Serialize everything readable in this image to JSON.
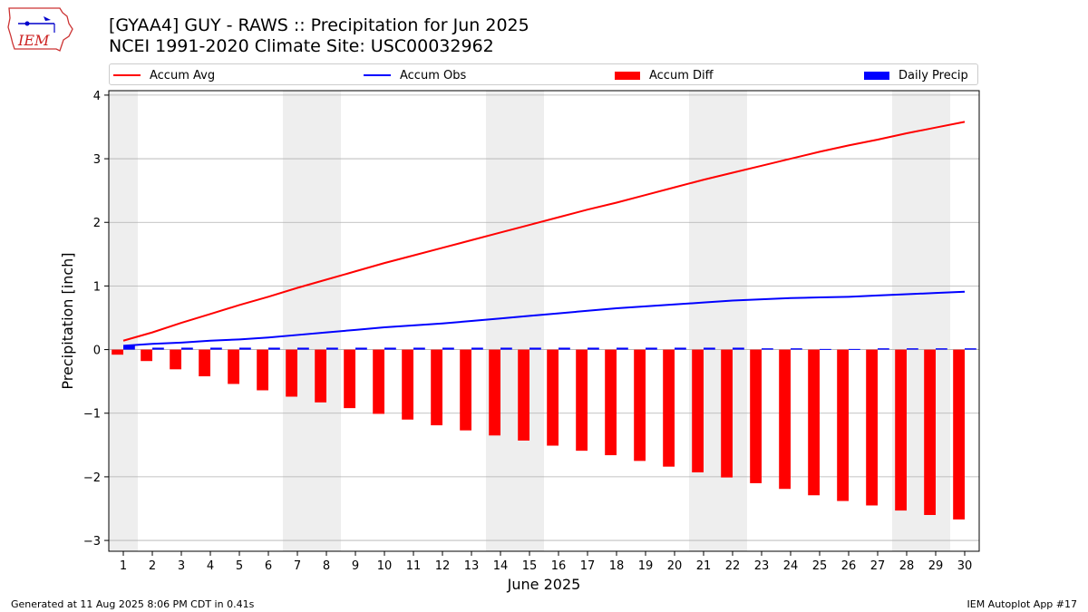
{
  "header": {
    "title_line1": "[GYAA4] GUY - RAWS :: Precipitation for Jun 2025",
    "title_line2": "NCEI 1991-2020 Climate Site: USC00032962",
    "logo_text": "IEM"
  },
  "footer": {
    "generated": "Generated at 11 Aug 2025 8:06 PM CDT in 0.41s",
    "app": "IEM Autoplot App #17"
  },
  "legend": {
    "accum_avg": "Accum Avg",
    "accum_obs": "Accum Obs",
    "accum_diff": "Accum Diff",
    "daily_precip": "Daily Precip"
  },
  "colors": {
    "accum_avg": "#ff0000",
    "accum_obs": "#0000ff",
    "accum_diff": "#ff0000",
    "daily_precip": "#0000ff",
    "weekend_shade": "#eeeeee",
    "grid": "#b0b0b0"
  },
  "chart_data": {
    "type": "bar",
    "xlabel": "June 2025",
    "ylabel": "Precipitation [inch]",
    "ylim": [
      -3.17,
      4.07
    ],
    "yticks": [
      -3,
      -2,
      -1,
      0,
      1,
      2,
      3,
      4
    ],
    "ytick_labels": [
      "−3",
      "−2",
      "−1",
      "0",
      "1",
      "2",
      "3",
      "4"
    ],
    "grid": "horizontal",
    "legend_position": "top",
    "x": [
      1,
      2,
      3,
      4,
      5,
      6,
      7,
      8,
      9,
      10,
      11,
      12,
      13,
      14,
      15,
      16,
      17,
      18,
      19,
      20,
      21,
      22,
      23,
      24,
      25,
      26,
      27,
      28,
      29,
      30
    ],
    "weekend_spans": [
      [
        0.5,
        1.5
      ],
      [
        6.5,
        8.5
      ],
      [
        13.5,
        15.5
      ],
      [
        20.5,
        22.5
      ],
      [
        27.5,
        29.5
      ]
    ],
    "series": [
      {
        "name": "Accum Avg",
        "kind": "line",
        "values": [
          0.14,
          0.27,
          0.42,
          0.56,
          0.7,
          0.83,
          0.97,
          1.1,
          1.23,
          1.36,
          1.48,
          1.6,
          1.72,
          1.84,
          1.96,
          2.08,
          2.2,
          2.31,
          2.43,
          2.55,
          2.67,
          2.78,
          2.89,
          3.0,
          3.11,
          3.21,
          3.3,
          3.4,
          3.49,
          3.58
        ]
      },
      {
        "name": "Accum Obs",
        "kind": "line",
        "values": [
          0.06,
          0.09,
          0.11,
          0.14,
          0.16,
          0.19,
          0.23,
          0.27,
          0.31,
          0.35,
          0.38,
          0.41,
          0.45,
          0.49,
          0.53,
          0.57,
          0.61,
          0.65,
          0.68,
          0.71,
          0.74,
          0.77,
          0.79,
          0.81,
          0.82,
          0.83,
          0.85,
          0.87,
          0.89,
          0.91
        ]
      },
      {
        "name": "Accum Diff",
        "kind": "bar",
        "values": [
          -0.08,
          -0.18,
          -0.31,
          -0.42,
          -0.54,
          -0.64,
          -0.74,
          -0.83,
          -0.92,
          -1.01,
          -1.1,
          -1.19,
          -1.27,
          -1.35,
          -1.43,
          -1.51,
          -1.59,
          -1.66,
          -1.75,
          -1.84,
          -1.93,
          -2.01,
          -2.1,
          -2.19,
          -2.29,
          -2.38,
          -2.45,
          -2.53,
          -2.6,
          -2.67
        ]
      },
      {
        "name": "Daily Precip",
        "kind": "bar",
        "values": [
          0.06,
          0.03,
          0.03,
          0.03,
          0.03,
          0.03,
          0.03,
          0.03,
          0.03,
          0.03,
          0.03,
          0.03,
          0.03,
          0.03,
          0.03,
          0.03,
          0.03,
          0.03,
          0.03,
          0.03,
          0.03,
          0.03,
          0.02,
          0.02,
          0.01,
          0.01,
          0.02,
          0.02,
          0.02,
          0.02
        ]
      }
    ]
  }
}
